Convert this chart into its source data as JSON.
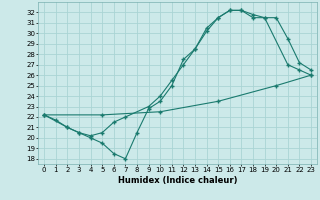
{
  "title": "",
  "xlabel": "Humidex (Indice chaleur)",
  "ylabel": "",
  "bg_color": "#cce9e9",
  "grid_color": "#aad4d4",
  "line_color": "#1a7a6e",
  "xlim": [
    -0.5,
    23.5
  ],
  "ylim": [
    17.5,
    33.0
  ],
  "xticks": [
    0,
    1,
    2,
    3,
    4,
    5,
    6,
    7,
    8,
    9,
    10,
    11,
    12,
    13,
    14,
    15,
    16,
    17,
    18,
    19,
    20,
    21,
    22,
    23
  ],
  "yticks": [
    18,
    19,
    20,
    21,
    22,
    23,
    24,
    25,
    26,
    27,
    28,
    29,
    30,
    31,
    32
  ],
  "line1_x": [
    0,
    1,
    2,
    3,
    4,
    5,
    6,
    7,
    8,
    9,
    10,
    11,
    12,
    13,
    14,
    15,
    16,
    17,
    18,
    19,
    20,
    21,
    22,
    23
  ],
  "line1_y": [
    22.2,
    21.7,
    21.0,
    20.5,
    20.0,
    19.5,
    18.5,
    18.0,
    20.5,
    22.8,
    23.5,
    25.0,
    27.5,
    28.5,
    30.5,
    31.5,
    32.2,
    32.2,
    31.8,
    31.5,
    31.5,
    29.5,
    27.2,
    26.5
  ],
  "line2_x": [
    0,
    2,
    3,
    4,
    5,
    6,
    7,
    9,
    10,
    11,
    12,
    13,
    14,
    15,
    16,
    17,
    18,
    19,
    21,
    22,
    23
  ],
  "line2_y": [
    22.2,
    21.0,
    20.5,
    20.2,
    20.5,
    21.5,
    22.0,
    23.0,
    24.0,
    25.5,
    27.0,
    28.5,
    30.2,
    31.5,
    32.2,
    32.2,
    31.5,
    31.5,
    27.0,
    26.5,
    26.0
  ],
  "line3_x": [
    0,
    5,
    10,
    15,
    20,
    23
  ],
  "line3_y": [
    22.2,
    22.2,
    22.5,
    23.5,
    25.0,
    26.0
  ],
  "tick_fontsize": 5,
  "xlabel_fontsize": 6
}
